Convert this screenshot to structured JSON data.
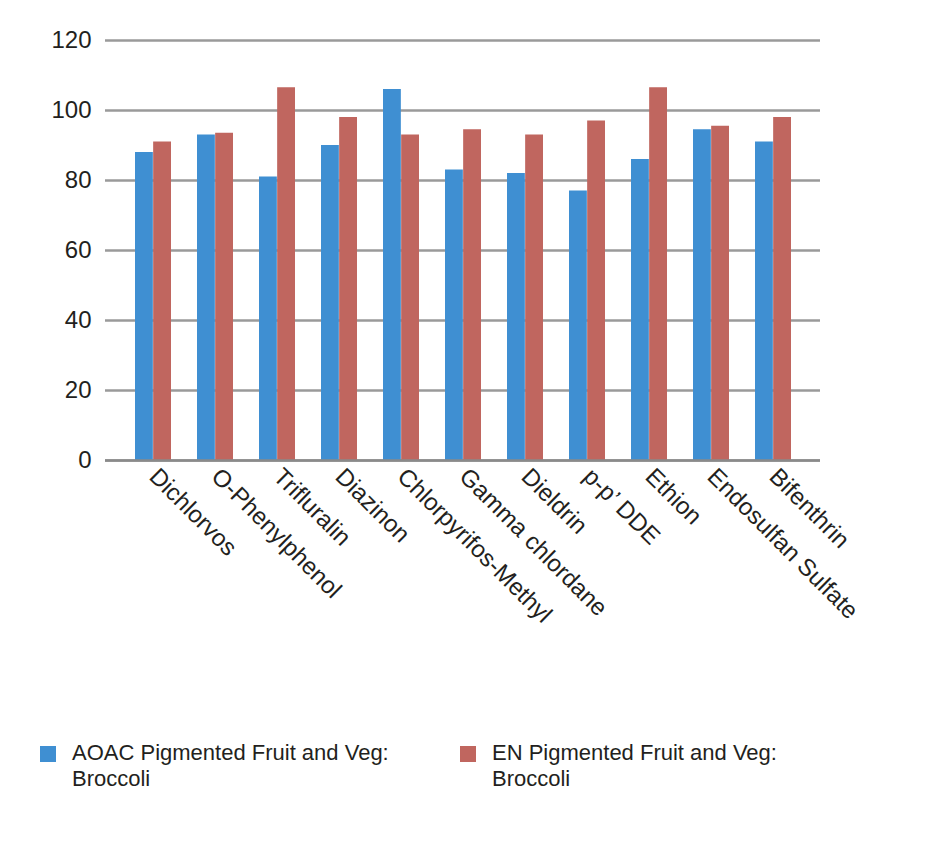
{
  "chart_data": {
    "type": "bar",
    "categories": [
      "Dichlorvos",
      "O-Phenylphenol",
      "Trifluralin",
      "Diazinon",
      "Chlorpyrifos-Methyl",
      "Gamma chlordane",
      "Dieldrin",
      "p-p’ DDE",
      "Ethion",
      "Endosulfan Sulfate",
      "Bifenthrin"
    ],
    "series": [
      {
        "name": "AOAC Pigmented Fruit and Veg: Broccoli",
        "color": "#3f8fd2",
        "values": [
          88,
          93,
          81,
          90,
          106,
          83,
          82,
          77,
          86,
          94.5,
          91
        ]
      },
      {
        "name": "EN Pigmented Fruit and Veg: Broccoli",
        "color": "#c0665f",
        "values": [
          91,
          93.5,
          106.5,
          98,
          93,
          94.5,
          93,
          97,
          106.5,
          95.5,
          98
        ]
      }
    ],
    "ylim": [
      0,
      120
    ],
    "yticks": [
      0,
      20,
      40,
      60,
      80,
      100,
      120
    ],
    "grid": true,
    "legend": "bottom"
  }
}
